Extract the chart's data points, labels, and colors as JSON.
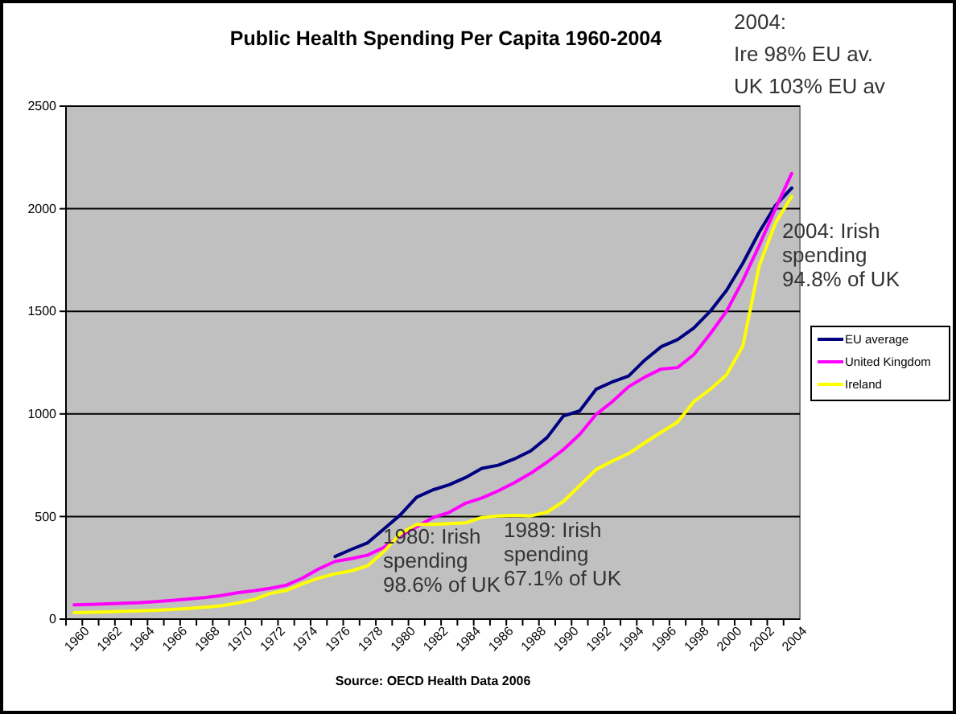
{
  "chart_data": {
    "type": "line",
    "title": "Public Health Spending Per Capita 1960-2004",
    "categories": [
      "1960",
      null,
      "1962",
      null,
      "1964",
      null,
      "1966",
      null,
      "1968",
      null,
      "1970",
      null,
      "1972",
      null,
      "1974",
      null,
      "1976",
      null,
      "1978",
      null,
      "1980",
      null,
      "1982",
      null,
      "1984",
      null,
      "1986",
      null,
      "1988",
      null,
      "1990",
      null,
      "1992",
      null,
      "1994",
      null,
      "1996",
      null,
      "1998",
      null,
      "2000",
      null,
      "2002",
      null,
      "2004"
    ],
    "series": [
      {
        "name": "EU average",
        "color": "#000080",
        "values": [
          null,
          null,
          null,
          null,
          null,
          null,
          null,
          null,
          null,
          null,
          null,
          null,
          null,
          null,
          null,
          null,
          305,
          340,
          372,
          440,
          508,
          594,
          630,
          655,
          690,
          735,
          750,
          781,
          820,
          885,
          990,
          1015,
          1120,
          1156,
          1185,
          1263,
          1328,
          1362,
          1419,
          1500,
          1602,
          1734,
          1885,
          2016,
          2101
        ]
      },
      {
        "name": "United Kingdom",
        "color": "#ff00ff",
        "values": [
          70,
          72,
          74,
          77,
          80,
          85,
          91,
          98,
          105,
          115,
          128,
          138,
          150,
          165,
          200,
          245,
          281,
          295,
          312,
          350,
          406,
          450,
          495,
          520,
          565,
          590,
          625,
          665,
          711,
          765,
          826,
          900,
          997,
          1060,
          1133,
          1180,
          1219,
          1226,
          1289,
          1390,
          1500,
          1650,
          1820,
          2000,
          2172
        ]
      },
      {
        "name": "Ireland",
        "color": "#ffff00",
        "values": [
          31,
          33,
          35,
          38,
          40,
          43,
          47,
          52,
          58,
          65,
          78,
          95,
          125,
          140,
          172,
          200,
          221,
          235,
          260,
          330,
          417,
          461,
          461,
          465,
          469,
          495,
          503,
          505,
          503,
          521,
          573,
          651,
          729,
          770,
          807,
          860,
          911,
          960,
          1060,
          1120,
          1190,
          1330,
          1720,
          1930,
          2060
        ]
      }
    ],
    "ylim": [
      0,
      2500
    ],
    "yticks": [
      0,
      500,
      1000,
      1500,
      2000,
      2500
    ],
    "grid": "y",
    "legend": "right",
    "marker": "none",
    "line_style": "solid",
    "annotations": [
      "1980: Irish\nspending\n98.6% of UK",
      "1989: Irish\nspending\n67.1% of UK",
      "2004: Irish\nspending\n94.8% of UK",
      "2004:\nIre 98% EU av.\nUK 103% EU av",
      "Source: OECD Health Data 2006"
    ]
  }
}
